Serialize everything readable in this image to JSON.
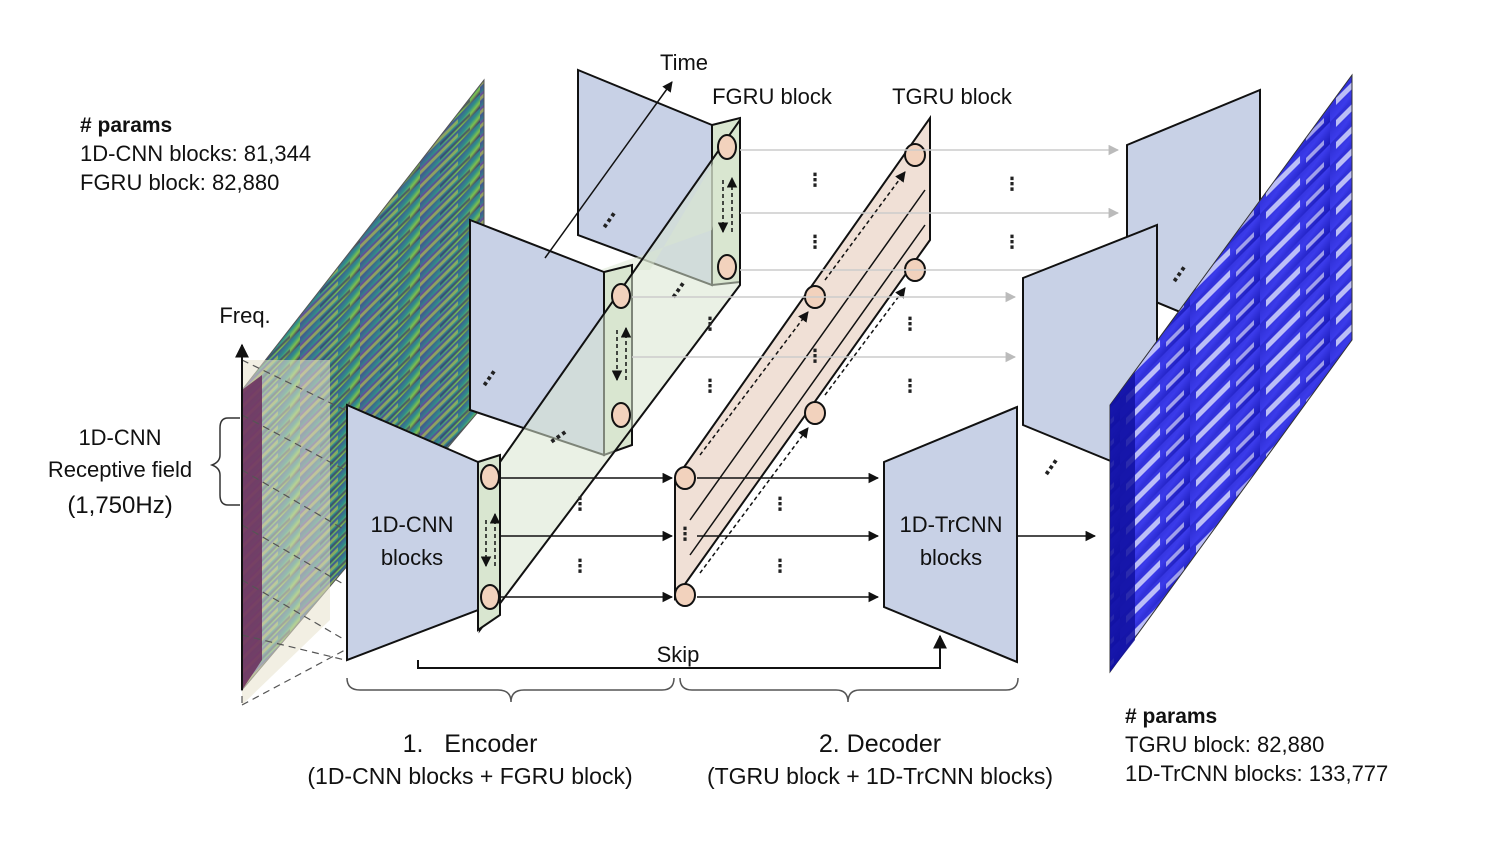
{
  "left_params": {
    "heading": "# params",
    "line1": "1D-CNN blocks: 81,344",
    "line2": "FGRU block: 82,880"
  },
  "right_params": {
    "heading": "# params",
    "line1": "TGRU block: 82,880",
    "line2": "1D-TrCNN blocks: 133,777"
  },
  "axis_labels": {
    "time": "Time",
    "freq": "Freq."
  },
  "block_labels": {
    "fgru": "FGRU block",
    "tgru": "TGRU block",
    "cnn_line1": "1D-CNN",
    "cnn_line2": "blocks",
    "trcnn_line1": "1D-TrCNN",
    "trcnn_line2": "blocks",
    "skip": "Skip"
  },
  "receptive_field": {
    "line1": "1D-CNN",
    "line2": "Receptive field",
    "line3": "(1,750Hz)"
  },
  "sections": {
    "encoder_title": "1.   Encoder",
    "encoder_sub": "(1D-CNN blocks + FGRU block)",
    "decoder_title": "2. Decoder",
    "decoder_sub": "(TGRU block + 1D-TrCNN blocks)"
  },
  "colors": {
    "block_fill": "#c8d1e6",
    "fgru_fill": "#d9e6d0",
    "tgru_fill": "#ecd8cc",
    "gru_cell_fill": "#f2d2bd",
    "input_spectrogram": "#4a2a6e",
    "output_spectrogram": "#2222dd"
  }
}
